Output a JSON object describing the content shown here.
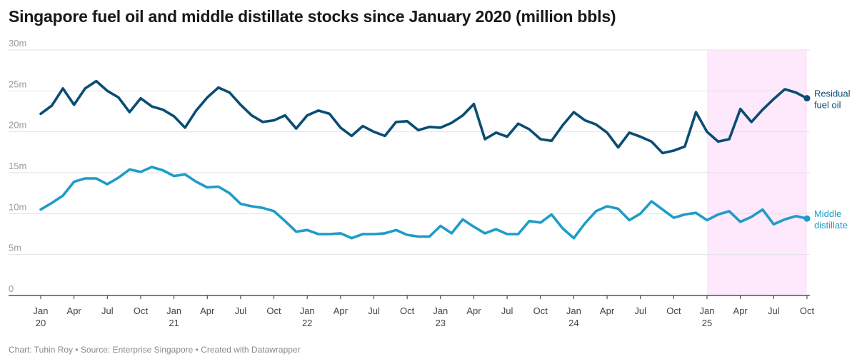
{
  "header": {
    "title": "Singapore fuel oil and middle distillate stocks since January 2020 (million bbls)"
  },
  "footer": {
    "credit": "Chart: Tuhin Roy • Source: Enterprise Singapore • Created with Datawrapper"
  },
  "chart_data": {
    "type": "line",
    "title": "Singapore fuel oil and middle distillate stocks since January 2020 (million bbls)",
    "ylim": [
      0,
      30
    ],
    "y_ticks": [
      {
        "value": 0,
        "label": "0"
      },
      {
        "value": 5,
        "label": "5m"
      },
      {
        "value": 10,
        "label": "10m"
      },
      {
        "value": 15,
        "label": "15m"
      },
      {
        "value": 20,
        "label": "20m"
      },
      {
        "value": 25,
        "label": "25m"
      },
      {
        "value": 30,
        "label": "30m"
      }
    ],
    "x_ticks": [
      {
        "month": 0,
        "label": "Jan",
        "sub": "20"
      },
      {
        "month": 3,
        "label": "Apr"
      },
      {
        "month": 6,
        "label": "Jul"
      },
      {
        "month": 9,
        "label": "Oct"
      },
      {
        "month": 12,
        "label": "Jan",
        "sub": "21"
      },
      {
        "month": 15,
        "label": "Apr"
      },
      {
        "month": 18,
        "label": "Jul"
      },
      {
        "month": 21,
        "label": "Oct"
      },
      {
        "month": 24,
        "label": "Jan",
        "sub": "22"
      },
      {
        "month": 27,
        "label": "Apr"
      },
      {
        "month": 30,
        "label": "Jul"
      },
      {
        "month": 33,
        "label": "Oct"
      },
      {
        "month": 36,
        "label": "Jan",
        "sub": "23"
      },
      {
        "month": 39,
        "label": "Apr"
      },
      {
        "month": 42,
        "label": "Jul"
      },
      {
        "month": 45,
        "label": "Oct"
      },
      {
        "month": 48,
        "label": "Jan",
        "sub": "24"
      },
      {
        "month": 51,
        "label": "Apr"
      },
      {
        "month": 54,
        "label": "Jul"
      },
      {
        "month": 57,
        "label": "Oct"
      },
      {
        "month": 60,
        "label": "Jan",
        "sub": "25"
      },
      {
        "month": 63,
        "label": "Apr"
      },
      {
        "month": 66,
        "label": "Jul"
      },
      {
        "month": 69,
        "label": "Oct"
      }
    ],
    "x_range": [
      "2020-01",
      "2025-10"
    ],
    "highlight": {
      "from": "2025-01",
      "to": "2025-10",
      "color": "#fde8fc"
    },
    "grid": true,
    "colors": {
      "residual": "#0a4d73",
      "distillate": "#1f9cc8",
      "axis": "#333333"
    },
    "series": [
      {
        "name": "Residual fuel oil",
        "label_lines": [
          "Residual",
          "fuel oil"
        ],
        "color": "#0a4d73",
        "values": [
          22.2,
          23.2,
          25.3,
          23.3,
          25.3,
          26.2,
          25.0,
          24.2,
          22.4,
          24.1,
          23.1,
          22.7,
          21.9,
          20.5,
          22.6,
          24.2,
          25.4,
          24.8,
          23.3,
          22.0,
          21.2,
          21.4,
          22.0,
          20.4,
          22.0,
          22.6,
          22.2,
          20.5,
          19.5,
          20.7,
          20.0,
          19.5,
          21.2,
          21.3,
          20.2,
          20.6,
          20.5,
          21.1,
          22.0,
          23.4,
          19.1,
          19.9,
          19.4,
          21.0,
          20.3,
          19.1,
          18.9,
          20.8,
          22.4,
          21.4,
          20.9,
          19.9,
          18.1,
          19.9,
          19.4,
          18.8,
          17.4,
          17.7,
          18.2,
          22.4,
          20.0,
          18.8,
          19.1,
          22.8,
          21.2,
          22.7,
          24.0,
          25.2,
          24.8,
          24.1
        ]
      },
      {
        "name": "Middle distillate",
        "label_lines": [
          "Middle",
          "distillate"
        ],
        "color": "#1f9cc8",
        "values": [
          10.5,
          11.3,
          12.2,
          13.9,
          14.3,
          14.3,
          13.6,
          14.4,
          15.4,
          15.1,
          15.7,
          15.3,
          14.6,
          14.8,
          13.9,
          13.2,
          13.3,
          12.5,
          11.2,
          10.9,
          10.7,
          10.3,
          9.1,
          7.8,
          8.0,
          7.5,
          7.5,
          7.6,
          7.0,
          7.5,
          7.5,
          7.6,
          8.0,
          7.4,
          7.2,
          7.2,
          8.5,
          7.6,
          9.3,
          8.4,
          7.6,
          8.1,
          7.5,
          7.5,
          9.1,
          8.9,
          9.9,
          8.2,
          7.0,
          8.8,
          10.3,
          10.9,
          10.6,
          9.2,
          10.0,
          11.5,
          10.5,
          9.5,
          9.9,
          10.1,
          9.2,
          9.9,
          10.3,
          9.0,
          9.6,
          10.5,
          8.7,
          9.3,
          9.7,
          9.4
        ]
      }
    ]
  }
}
